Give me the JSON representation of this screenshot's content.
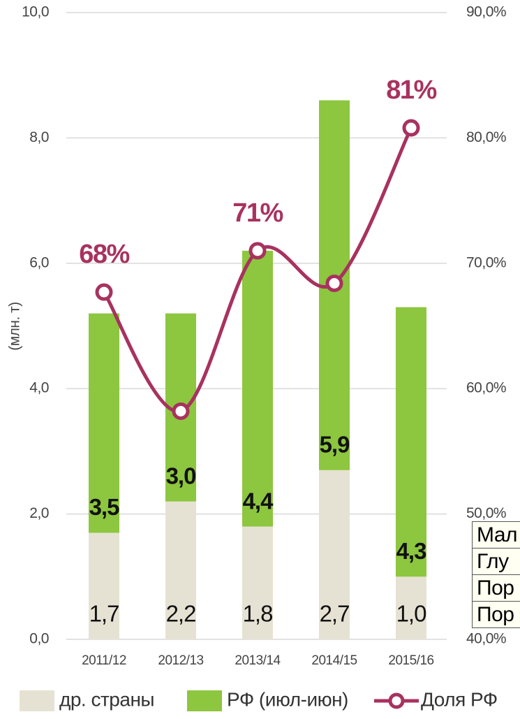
{
  "chart_data": {
    "type": "bar",
    "stacked": true,
    "y_label": "(млн. т)",
    "categories": [
      "2011/12",
      "2012/13",
      "2013/14",
      "2014/15",
      "2015/16"
    ],
    "series": [
      {
        "name": "др. страны",
        "color": "#e6e2d3",
        "values": [
          1.7,
          2.2,
          1.8,
          2.7,
          1.0
        ],
        "value_labels": [
          "1,7",
          "2,2",
          "1,8",
          "2,7",
          "1,0"
        ]
      },
      {
        "name": "РФ (июл-июн)",
        "color": "#8dc63f",
        "values": [
          3.5,
          3.0,
          4.4,
          5.9,
          4.3
        ],
        "value_labels": [
          "3,5",
          "3,0",
          "4,4",
          "5,9",
          "4,3"
        ]
      },
      {
        "name": "Доля РФ",
        "type": "line",
        "axis": "y2",
        "color": "#a8325f",
        "values": [
          67.7,
          58.2,
          71.0,
          68.4,
          80.8
        ],
        "value_labels": [
          "68%",
          null,
          "71%",
          null,
          "81%"
        ]
      }
    ],
    "ylim": [
      0,
      10
    ],
    "yticks": [
      {
        "value": 0,
        "label": "0,0"
      },
      {
        "value": 2,
        "label": "2,0"
      },
      {
        "value": 4,
        "label": "4,0"
      },
      {
        "value": 6,
        "label": "6,0"
      },
      {
        "value": 8,
        "label": "8,0"
      },
      {
        "value": 10,
        "label": "10,0"
      }
    ],
    "y2lim": [
      40,
      90
    ],
    "y2ticks": [
      {
        "value": 40,
        "label": "40,0%"
      },
      {
        "value": 50,
        "label": "50,0%"
      },
      {
        "value": 60,
        "label": "60,0%"
      },
      {
        "value": 70,
        "label": "70,0%"
      },
      {
        "value": 80,
        "label": "80,0%"
      },
      {
        "value": 90,
        "label": "90,0%"
      }
    ],
    "grid": true,
    "legend": "bottom"
  },
  "table": {
    "rows": [
      "Мал",
      "Глу",
      "Пор",
      "Пор"
    ]
  }
}
